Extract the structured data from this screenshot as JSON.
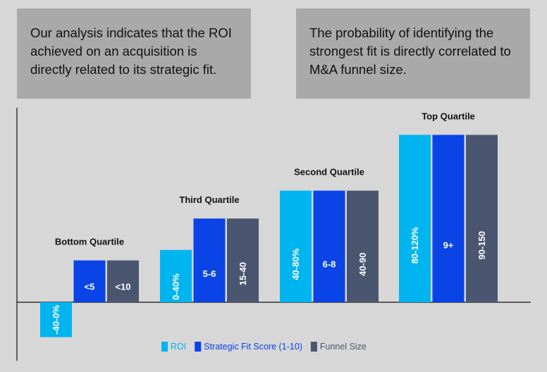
{
  "panels": {
    "left_text": "Our analysis indicates that the ROI achieved on an acquisition is directly related to its strategic fit.",
    "right_text": "The probability of identifying the strongest fit is directly correlated to M&A funnel size."
  },
  "colors": {
    "background": "#d7d7d7",
    "panel": "#a9a9a9",
    "roi": "#00b4f0",
    "strategic_fit": "#0a43e6",
    "funnel_size": "#4a5670",
    "text": "#111111"
  },
  "chart_data": {
    "type": "bar",
    "categories": [
      "Bottom Quartile",
      "Third Quartile",
      "Second Quartile",
      "Top Quartile"
    ],
    "series": [
      {
        "name": "ROI",
        "color": "#00b4f0",
        "values": [
          -1,
          1.5,
          3.2,
          4.8
        ],
        "labels": [
          "-40-0%",
          "0-40%",
          "40-80%",
          "80-120%"
        ]
      },
      {
        "name": "Strategic Fit Score (1-10)",
        "color": "#0a43e6",
        "values": [
          1.2,
          2.4,
          3.2,
          4.8
        ],
        "labels": [
          "<5",
          "5-6",
          "6-8",
          "9+"
        ]
      },
      {
        "name": "Funnel Size",
        "color": "#4a5670",
        "values": [
          1.2,
          2.4,
          3.2,
          4.8
        ],
        "labels": [
          "<10",
          "15-40",
          "40-90",
          "90-150"
        ]
      }
    ],
    "axes_visible": false,
    "legend_position": "bottom"
  }
}
